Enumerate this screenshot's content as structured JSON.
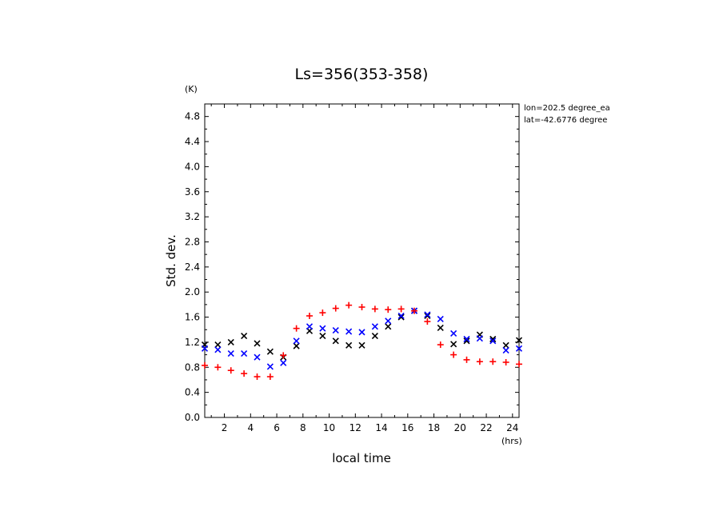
{
  "chart_data": {
    "type": "scatter",
    "title": "Ls=356(353-358)",
    "xlabel": "local time",
    "ylabel": "Std. dev.",
    "x_unit": "(hrs)",
    "y_unit": "(K)",
    "annotations": [
      "lon=202.5 degree_ea",
      "lat=-42.6776 degree"
    ],
    "xlim": [
      0.5,
      24.5
    ],
    "ylim": [
      0.0,
      5.0
    ],
    "x_ticks": [
      2,
      4,
      6,
      8,
      10,
      12,
      14,
      16,
      18,
      20,
      22,
      24
    ],
    "y_ticks": [
      0.0,
      0.4,
      0.8,
      1.2,
      1.6,
      2.0,
      2.4,
      2.8,
      3.2,
      3.6,
      4.0,
      4.4,
      4.8
    ],
    "grid": false,
    "series": [
      {
        "marker": "x",
        "color": "#000000",
        "x": [
          0.5,
          1.5,
          2.5,
          3.5,
          4.5,
          5.5,
          6.5,
          7.5,
          8.5,
          9.5,
          10.5,
          11.5,
          12.5,
          13.5,
          14.5,
          15.5,
          16.5,
          17.5,
          18.5,
          19.5,
          20.5,
          21.5,
          22.5,
          23.5,
          24.5
        ],
        "y": [
          1.16,
          1.16,
          1.2,
          1.3,
          1.18,
          1.05,
          0.96,
          1.14,
          1.38,
          1.3,
          1.22,
          1.15,
          1.15,
          1.3,
          1.45,
          1.6,
          1.7,
          1.62,
          1.43,
          1.17,
          1.22,
          1.32,
          1.25,
          1.15,
          1.23
        ]
      },
      {
        "marker": "x",
        "color": "#0000ff",
        "x": [
          0.5,
          1.5,
          2.5,
          3.5,
          4.5,
          5.5,
          6.5,
          7.5,
          8.5,
          9.5,
          10.5,
          11.5,
          12.5,
          13.5,
          14.5,
          15.5,
          16.5,
          17.5,
          18.5,
          19.5,
          20.5,
          21.5,
          22.5,
          23.5,
          24.5
        ],
        "y": [
          1.1,
          1.08,
          1.02,
          1.02,
          0.96,
          0.81,
          0.87,
          1.22,
          1.45,
          1.42,
          1.39,
          1.37,
          1.36,
          1.45,
          1.54,
          1.62,
          1.7,
          1.64,
          1.57,
          1.34,
          1.25,
          1.26,
          1.22,
          1.07,
          1.1
        ]
      },
      {
        "marker": "+",
        "color": "#ff0000",
        "x": [
          0.5,
          1.5,
          2.5,
          3.5,
          4.5,
          5.5,
          6.5,
          7.5,
          8.5,
          9.5,
          10.5,
          11.5,
          12.5,
          13.5,
          14.5,
          15.5,
          16.5,
          17.5,
          18.5,
          19.5,
          20.5,
          21.5,
          22.5,
          23.5,
          24.5
        ],
        "y": [
          0.83,
          0.8,
          0.75,
          0.7,
          0.65,
          0.65,
          0.99,
          1.42,
          1.62,
          1.67,
          1.74,
          1.79,
          1.76,
          1.73,
          1.72,
          1.73,
          1.7,
          1.53,
          1.16,
          1.0,
          0.92,
          0.89,
          0.89,
          0.88,
          0.85
        ]
      }
    ]
  }
}
